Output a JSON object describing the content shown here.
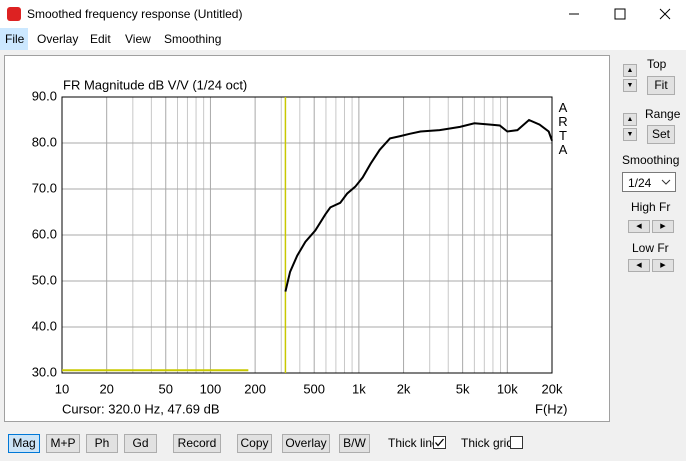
{
  "window": {
    "title": "Smoothed frequency response (Untitled)"
  },
  "menu": [
    "File",
    "Overlay",
    "Edit",
    "View",
    "Smoothing"
  ],
  "chart_data": {
    "type": "line",
    "title": "FR Magnitude dB V/V (1/24 oct)",
    "x_label": "F(Hz)",
    "watermark": "ARTA",
    "cursor_label": "Cursor: 320.0 Hz, 47.69 dB",
    "cursor_x": 320,
    "cursor_color": "#c8c800",
    "xscale": "log",
    "xlim": [
      10,
      20000
    ],
    "ylim": [
      30,
      90
    ],
    "xticks": [
      10,
      20,
      50,
      100,
      200,
      500,
      {
        "value": 1000,
        "label": "1k"
      },
      {
        "value": 2000,
        "label": "2k"
      },
      {
        "value": 5000,
        "label": "5k"
      },
      {
        "value": 10000,
        "label": "10k"
      },
      {
        "value": 20000,
        "label": "20k"
      }
    ],
    "xgrid_minor": [
      30,
      40,
      60,
      70,
      80,
      90,
      300,
      400,
      600,
      700,
      800,
      900,
      3000,
      4000,
      6000,
      7000,
      8000,
      9000
    ],
    "yticks": [
      {
        "value": 30,
        "label": "30.0"
      },
      {
        "value": 40,
        "label": "40.0"
      },
      {
        "value": 50,
        "label": "50.0"
      },
      {
        "value": 60,
        "label": "60.0"
      },
      {
        "value": 70,
        "label": "70.0"
      },
      {
        "value": 80,
        "label": "80.0"
      },
      {
        "value": 90,
        "label": "90.0"
      }
    ],
    "grid": true,
    "x": [
      320,
      344,
      384,
      436,
      509,
      595,
      642,
      749,
      833,
      945,
      1060,
      1200,
      1380,
      1620,
      1900,
      2200,
      2600,
      3500,
      4800,
      6000,
      7700,
      8900,
      10000,
      11700,
      14000,
      16500,
      19000,
      20000
    ],
    "series": [
      {
        "color": "#000000",
        "values": [
          47.7,
          52,
          55.5,
          58.5,
          61,
          64.5,
          66,
          67,
          69,
          70.5,
          72.5,
          75.5,
          78.5,
          81,
          81.5,
          82,
          82.5,
          82.8,
          83.5,
          84.3,
          84,
          83.8,
          82.5,
          82.8,
          85,
          84,
          82.5,
          80.5
        ]
      },
      {
        "color": "#c8c800",
        "x": [
          10,
          180
        ],
        "values": [
          30.6,
          30.6
        ]
      }
    ]
  },
  "side_panel": {
    "top_label": "Top",
    "fit": "Fit",
    "range_label": "Range",
    "set": "Set",
    "smoothing_label": "Smoothing",
    "smoothing_value": "1/24",
    "high_fr": "High Fr",
    "low_fr": "Low Fr"
  },
  "toolbar": {
    "buttons": [
      "Mag",
      "M+P",
      "Ph",
      "Gd",
      "Record",
      "Copy",
      "Overlay",
      "B/W"
    ],
    "thick_line": "Thick line",
    "thick_grid": "Thick grid"
  }
}
